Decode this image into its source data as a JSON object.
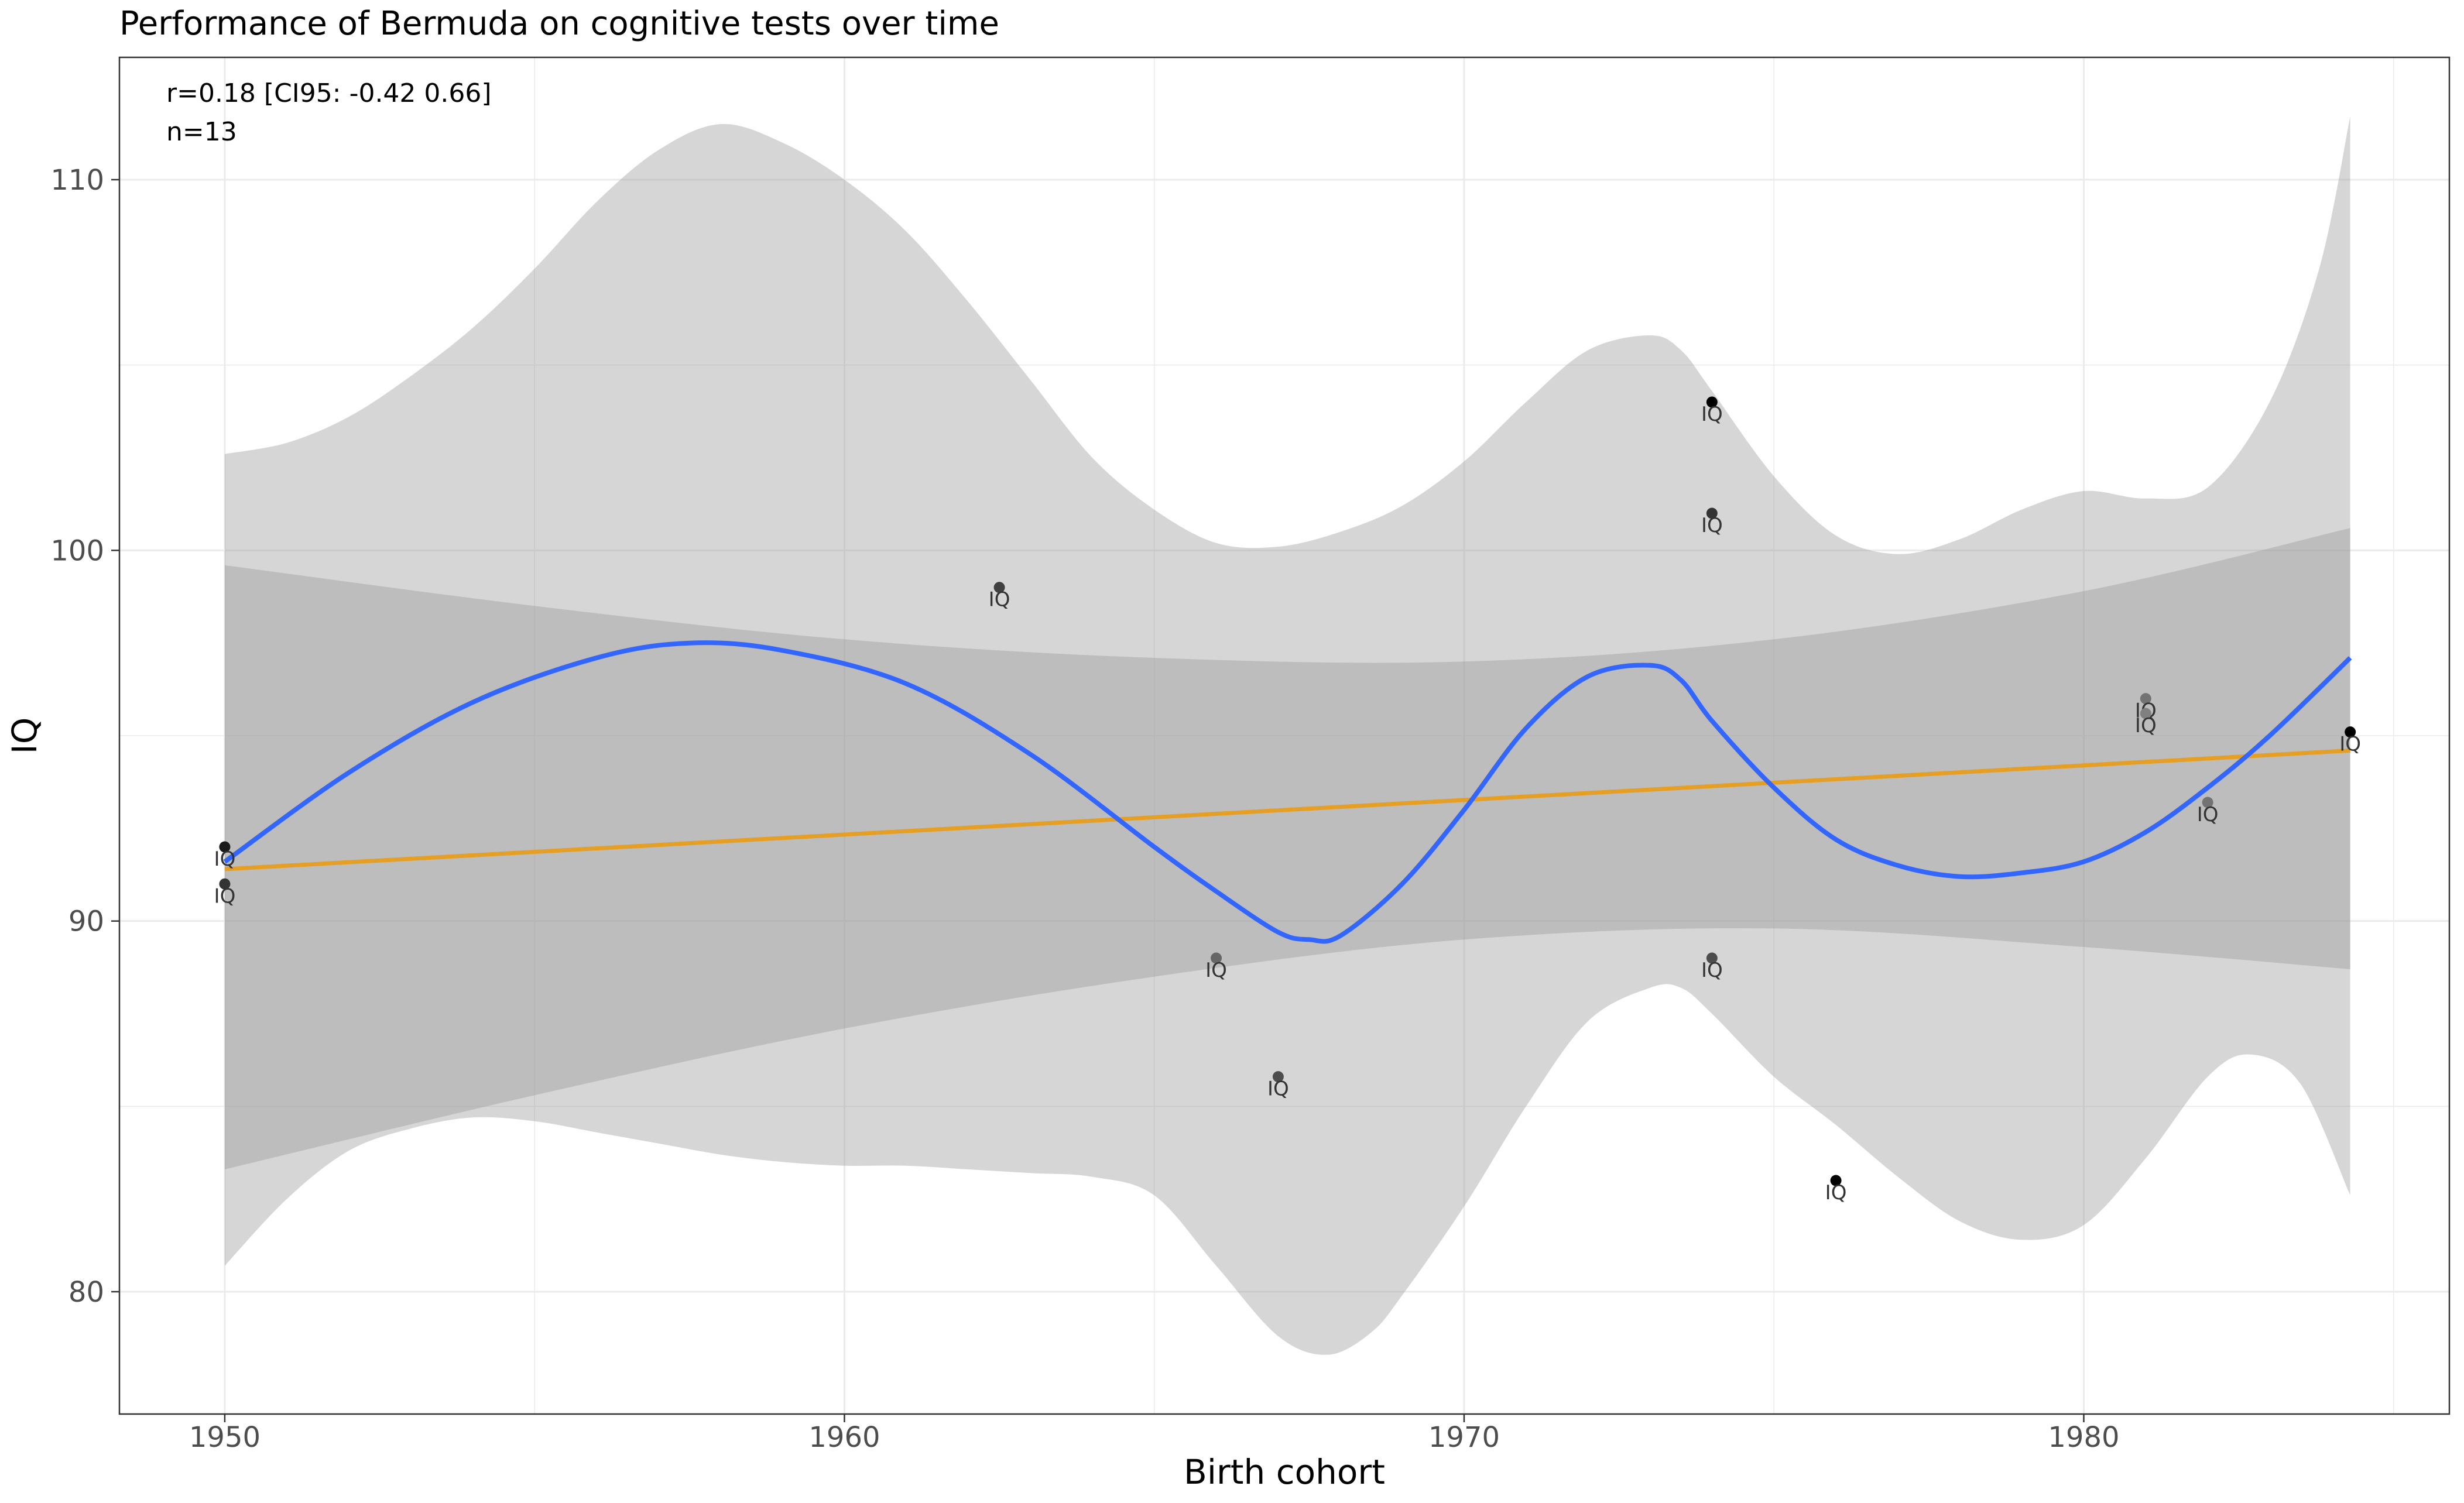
{
  "chart_data": {
    "type": "scatter",
    "title": "Performance of Bermuda on cognitive tests over time",
    "xlabel": "Birth cohort",
    "ylabel": "IQ",
    "xlim": [
      1948.3,
      1985.9
    ],
    "ylim": [
      76.7,
      113.3
    ],
    "x_ticks": [
      1950,
      1960,
      1970,
      1980
    ],
    "y_ticks": [
      80,
      90,
      100,
      110
    ],
    "grid": true,
    "annotations": [
      "r=0.18 [CI95: -0.42 0.66]",
      "n=13"
    ],
    "point_label": "IQ",
    "points": [
      {
        "x": 1950.0,
        "y": 92.0,
        "shade": 0.1
      },
      {
        "x": 1950.0,
        "y": 91.0,
        "shade": 0.2
      },
      {
        "x": 1962.5,
        "y": 99.0,
        "shade": 0.25
      },
      {
        "x": 1966.0,
        "y": 89.0,
        "shade": 0.4
      },
      {
        "x": 1967.0,
        "y": 85.8,
        "shade": 0.3
      },
      {
        "x": 1974.0,
        "y": 104.0,
        "shade": 0.0
      },
      {
        "x": 1974.0,
        "y": 101.0,
        "shade": 0.2
      },
      {
        "x": 1974.0,
        "y": 89.0,
        "shade": 0.3
      },
      {
        "x": 1976.0,
        "y": 83.0,
        "shade": 0.0
      },
      {
        "x": 1981.0,
        "y": 96.0,
        "shade": 0.45
      },
      {
        "x": 1981.0,
        "y": 95.6,
        "shade": 0.5
      },
      {
        "x": 1982.0,
        "y": 93.2,
        "shade": 0.45
      },
      {
        "x": 1984.3,
        "y": 95.1,
        "shade": 0.0
      }
    ],
    "linear_fit": {
      "color": "#E69F25",
      "x": [
        1950.0,
        1984.3
      ],
      "y": [
        91.4,
        94.6
      ],
      "ci_upper": [
        [
          1950.0,
          99.6
        ],
        [
          1955,
          98.5
        ],
        [
          1960,
          97.6
        ],
        [
          1965,
          97.1
        ],
        [
          1970,
          97.0
        ],
        [
          1975,
          97.6
        ],
        [
          1980,
          98.9
        ],
        [
          1984.3,
          100.6
        ]
      ],
      "ci_lower": [
        [
          1950.0,
          83.3
        ],
        [
          1955,
          85.3
        ],
        [
          1960,
          87.1
        ],
        [
          1965,
          88.5
        ],
        [
          1970,
          89.5
        ],
        [
          1975,
          89.8
        ],
        [
          1980,
          89.3
        ],
        [
          1984.3,
          88.7
        ]
      ]
    },
    "loess_fit": {
      "color": "#3366FF",
      "points": [
        [
          1950.0,
          91.6
        ],
        [
          1952,
          94.0
        ],
        [
          1954,
          95.9
        ],
        [
          1956,
          97.1
        ],
        [
          1957.5,
          97.5
        ],
        [
          1959,
          97.3
        ],
        [
          1961,
          96.4
        ],
        [
          1963,
          94.5
        ],
        [
          1965,
          92.0
        ],
        [
          1966,
          90.8
        ],
        [
          1967,
          89.7
        ],
        [
          1967.5,
          89.5
        ],
        [
          1968,
          89.6
        ],
        [
          1969,
          91.0
        ],
        [
          1970,
          93.0
        ],
        [
          1971,
          95.2
        ],
        [
          1972,
          96.6
        ],
        [
          1973,
          96.9
        ],
        [
          1973.5,
          96.5
        ],
        [
          1974,
          95.4
        ],
        [
          1975,
          93.6
        ],
        [
          1976,
          92.2
        ],
        [
          1977,
          91.5
        ],
        [
          1978,
          91.2
        ],
        [
          1979,
          91.3
        ],
        [
          1980,
          91.6
        ],
        [
          1981,
          92.4
        ],
        [
          1982,
          93.6
        ],
        [
          1983,
          95.0
        ],
        [
          1984.3,
          97.1
        ]
      ],
      "ci_upper": [
        [
          1950.0,
          102.6
        ],
        [
          1951,
          102.9
        ],
        [
          1952,
          103.6
        ],
        [
          1953,
          104.7
        ],
        [
          1954,
          106.0
        ],
        [
          1955,
          107.6
        ],
        [
          1956,
          109.4
        ],
        [
          1957,
          110.8
        ],
        [
          1958,
          111.5
        ],
        [
          1959,
          111.0
        ],
        [
          1960,
          110.0
        ],
        [
          1961,
          108.6
        ],
        [
          1962,
          106.7
        ],
        [
          1963,
          104.6
        ],
        [
          1964,
          102.5
        ],
        [
          1965,
          101.1
        ],
        [
          1966,
          100.2
        ],
        [
          1967,
          100.1
        ],
        [
          1968,
          100.5
        ],
        [
          1969,
          101.2
        ],
        [
          1970,
          102.4
        ],
        [
          1971,
          104.0
        ],
        [
          1972,
          105.4
        ],
        [
          1973,
          105.8
        ],
        [
          1973.5,
          105.4
        ],
        [
          1974,
          104.3
        ],
        [
          1975,
          102.0
        ],
        [
          1976,
          100.4
        ],
        [
          1977,
          99.9
        ],
        [
          1978,
          100.3
        ],
        [
          1979,
          101.1
        ],
        [
          1980,
          101.6
        ],
        [
          1981,
          101.4
        ],
        [
          1982,
          101.7
        ],
        [
          1983,
          104.0
        ],
        [
          1983.8,
          107.6
        ],
        [
          1984.3,
          111.7
        ]
      ],
      "ci_lower": [
        [
          1950.0,
          80.7
        ],
        [
          1951,
          82.5
        ],
        [
          1952,
          83.8
        ],
        [
          1953,
          84.4
        ],
        [
          1954,
          84.7
        ],
        [
          1955,
          84.6
        ],
        [
          1956,
          84.3
        ],
        [
          1957,
          84.0
        ],
        [
          1958,
          83.7
        ],
        [
          1959,
          83.5
        ],
        [
          1960,
          83.4
        ],
        [
          1961,
          83.4
        ],
        [
          1962,
          83.3
        ],
        [
          1963,
          83.2
        ],
        [
          1964,
          83.1
        ],
        [
          1965,
          82.6
        ],
        [
          1966,
          80.7
        ],
        [
          1967,
          78.8
        ],
        [
          1967.8,
          78.3
        ],
        [
          1968.5,
          78.9
        ],
        [
          1969,
          79.9
        ],
        [
          1970,
          82.3
        ],
        [
          1971,
          85.0
        ],
        [
          1972,
          87.3
        ],
        [
          1973,
          88.2
        ],
        [
          1973.5,
          88.2
        ],
        [
          1974,
          87.5
        ],
        [
          1975,
          85.8
        ],
        [
          1976,
          84.5
        ],
        [
          1977,
          83.1
        ],
        [
          1978,
          81.9
        ],
        [
          1979,
          81.4
        ],
        [
          1980,
          81.8
        ],
        [
          1981,
          83.6
        ],
        [
          1982,
          85.8
        ],
        [
          1982.7,
          86.4
        ],
        [
          1983.5,
          85.6
        ],
        [
          1984.3,
          82.6
        ]
      ]
    }
  }
}
